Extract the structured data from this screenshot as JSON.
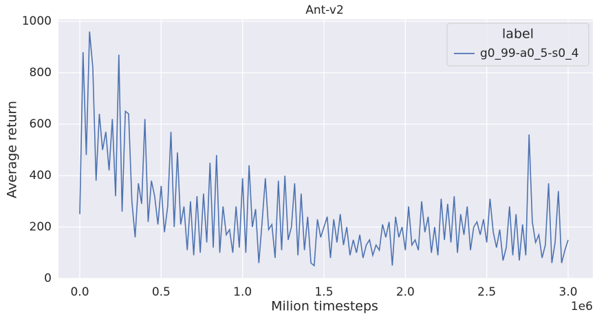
{
  "chart_data": {
    "type": "line",
    "title": "Ant-v2",
    "xlabel": "Milion timesteps",
    "ylabel": "Average return",
    "x_offset_label": "1e6",
    "legend_title": "label",
    "legend_loc": "upper right",
    "grid": true,
    "xlim": [
      -131000,
      3152000
    ],
    "ylim": [
      0,
      1008
    ],
    "xticks": [
      {
        "value": 0,
        "label": "0.0"
      },
      {
        "value": 500000,
        "label": "0.5"
      },
      {
        "value": 1000000,
        "label": "1.0"
      },
      {
        "value": 1500000,
        "label": "1.5"
      },
      {
        "value": 2000000,
        "label": "2.0"
      },
      {
        "value": 2500000,
        "label": "2.5"
      },
      {
        "value": 3000000,
        "label": "3.0"
      }
    ],
    "yticks": [
      0,
      200,
      400,
      600,
      800,
      1000
    ],
    "x": [
      0,
      20000,
      40000,
      60000,
      80000,
      100000,
      120000,
      140000,
      160000,
      180000,
      200000,
      220000,
      240000,
      260000,
      280000,
      300000,
      320000,
      340000,
      360000,
      380000,
      400000,
      420000,
      440000,
      460000,
      480000,
      500000,
      520000,
      540000,
      560000,
      580000,
      600000,
      620000,
      640000,
      660000,
      680000,
      700000,
      720000,
      740000,
      760000,
      780000,
      800000,
      820000,
      840000,
      860000,
      880000,
      900000,
      920000,
      940000,
      960000,
      980000,
      1000000,
      1020000,
      1040000,
      1060000,
      1080000,
      1100000,
      1120000,
      1140000,
      1160000,
      1180000,
      1200000,
      1220000,
      1240000,
      1260000,
      1280000,
      1300000,
      1320000,
      1340000,
      1360000,
      1380000,
      1400000,
      1420000,
      1440000,
      1460000,
      1480000,
      1500000,
      1520000,
      1540000,
      1560000,
      1580000,
      1600000,
      1620000,
      1640000,
      1660000,
      1680000,
      1700000,
      1720000,
      1740000,
      1760000,
      1780000,
      1800000,
      1820000,
      1840000,
      1860000,
      1880000,
      1900000,
      1920000,
      1940000,
      1960000,
      1980000,
      2000000,
      2020000,
      2040000,
      2060000,
      2080000,
      2100000,
      2120000,
      2140000,
      2160000,
      2180000,
      2200000,
      2220000,
      2240000,
      2260000,
      2280000,
      2300000,
      2320000,
      2340000,
      2360000,
      2380000,
      2400000,
      2420000,
      2440000,
      2460000,
      2480000,
      2500000,
      2520000,
      2540000,
      2560000,
      2580000,
      2600000,
      2620000,
      2640000,
      2660000,
      2680000,
      2700000,
      2720000,
      2740000,
      2760000,
      2780000,
      2800000,
      2820000,
      2840000,
      2860000,
      2880000,
      2900000,
      2920000,
      2940000,
      2960000,
      2980000,
      3000000
    ],
    "series": [
      {
        "name": "g0_99-a0_5-s0_4",
        "color": "#4c72b0",
        "values": [
          250,
          880,
          480,
          960,
          820,
          380,
          640,
          500,
          570,
          420,
          620,
          320,
          870,
          260,
          650,
          640,
          300,
          160,
          370,
          290,
          620,
          220,
          380,
          320,
          210,
          360,
          180,
          280,
          570,
          200,
          490,
          210,
          280,
          110,
          300,
          90,
          320,
          100,
          330,
          140,
          450,
          120,
          480,
          100,
          280,
          170,
          190,
          100,
          280,
          120,
          390,
          100,
          440,
          200,
          270,
          60,
          220,
          390,
          190,
          210,
          80,
          380,
          110,
          400,
          150,
          200,
          370,
          90,
          330,
          110,
          240,
          60,
          50,
          230,
          160,
          200,
          240,
          80,
          230,
          140,
          250,
          130,
          200,
          90,
          150,
          100,
          170,
          80,
          130,
          150,
          90,
          130,
          110,
          210,
          160,
          220,
          50,
          240,
          160,
          200,
          110,
          280,
          130,
          150,
          110,
          300,
          180,
          240,
          100,
          200,
          90,
          310,
          150,
          290,
          140,
          320,
          100,
          250,
          170,
          280,
          110,
          200,
          220,
          170,
          230,
          140,
          310,
          180,
          120,
          190,
          70,
          120,
          280,
          90,
          250,
          70,
          210,
          90,
          560,
          220,
          140,
          170,
          80,
          130,
          370,
          60,
          140,
          340,
          60,
          110,
          150
        ]
      }
    ]
  }
}
